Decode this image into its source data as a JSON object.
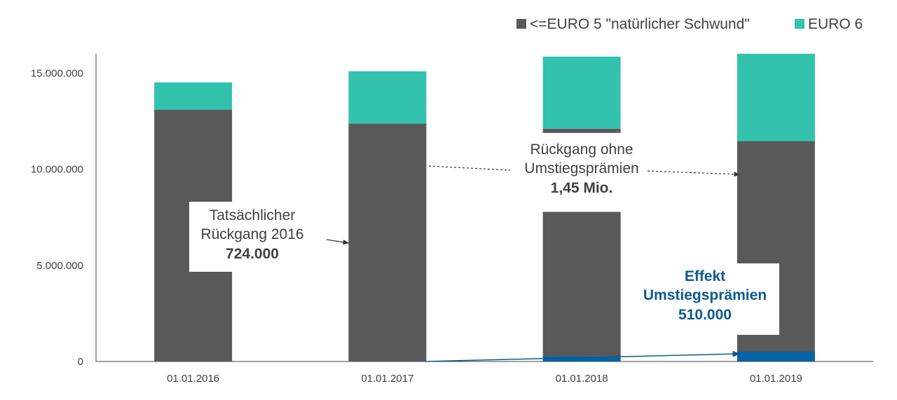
{
  "chart_data": {
    "type": "bar",
    "stacked": true,
    "categories": [
      "01.01.2016",
      "01.01.2017",
      "01.01.2018",
      "01.01.2019"
    ],
    "series": [
      {
        "key": "effekt",
        "color": "#0563a6",
        "values": [
          0,
          0,
          270000,
          510000
        ]
      },
      {
        "name": "<=EURO 5 \"natürlicher Schwund\"",
        "key": "euro5",
        "color": "#595959",
        "values": [
          13100000,
          12380000,
          7520000,
          10960000
        ]
      },
      {
        "key": "gap",
        "color": "#ffffff",
        "values": [
          0,
          0,
          4100000,
          0
        ]
      },
      {
        "key": "euro5b",
        "color": "#595959",
        "values": [
          0,
          0,
          220000,
          0
        ]
      },
      {
        "name": "EURO 6",
        "key": "euro6",
        "color": "#32c2ae",
        "values": [
          1420000,
          2720000,
          3750000,
          4540000
        ]
      }
    ],
    "ylim": [
      0,
      16000000
    ],
    "yticks": [
      "0",
      "5.000.000",
      "10.000.000",
      "15.000.000"
    ],
    "ytick_values": [
      0,
      5000000,
      10000000,
      15000000
    ],
    "legend_position": "top-right",
    "grid": false
  },
  "legend": [
    {
      "label": "<=EURO 5 \"natürlicher Schwund\"",
      "color": "#595959"
    },
    {
      "label": "EURO 6",
      "color": "#32c2ae"
    }
  ],
  "annotations": {
    "actual": {
      "line1": "Tatsächlicher",
      "line2": "Rückgang 2016",
      "value": "724.000"
    },
    "without": {
      "line1": "Rückgang ohne",
      "line2": "Umstiegsprämien",
      "value": "1,45 Mio."
    },
    "effect": {
      "line1": "Effekt",
      "line2": "Umstiegsprämien",
      "value": "510.000"
    }
  }
}
